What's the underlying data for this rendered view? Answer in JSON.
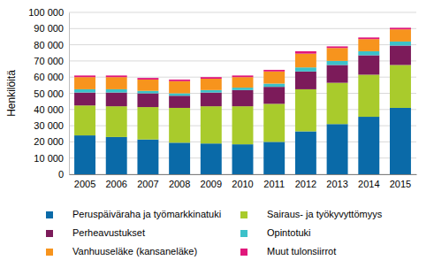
{
  "chart_data": {
    "type": "bar",
    "stacked": true,
    "grid": true,
    "legend": "bottom",
    "y_label": "Henkilöitä",
    "categories": [
      "2005",
      "2006",
      "2007",
      "2008",
      "2009",
      "2010",
      "2011",
      "2012",
      "2013",
      "2014",
      "2015"
    ],
    "ylim": [
      0,
      100000
    ],
    "yticks": [
      0,
      {
        "value": 10000,
        "label": "10 000"
      },
      {
        "value": 20000,
        "label": "20 000"
      },
      {
        "value": 30000,
        "label": "30 000"
      },
      {
        "value": 40000,
        "label": "40 000"
      },
      {
        "value": 50000,
        "label": "50 000"
      },
      {
        "value": 60000,
        "label": "60 000"
      },
      {
        "value": 70000,
        "label": "70 000"
      },
      {
        "value": 80000,
        "label": "80 000"
      },
      {
        "value": 90000,
        "label": "90 000"
      },
      {
        "value": 100000,
        "label": "100 000"
      }
    ],
    "series": [
      {
        "name": "Peruspäiväraha ja työmarkkinatuki",
        "color": "#0a6aa8",
        "values": [
          24000,
          23000,
          21500,
          19500,
          19000,
          18500,
          20000,
          26500,
          31000,
          35500,
          41000
        ]
      },
      {
        "name": "Sairaus- ja työkyvyttömyys",
        "color": "#a9cb2c",
        "values": [
          18500,
          19000,
          20000,
          21500,
          23000,
          23500,
          23500,
          26000,
          25500,
          26000,
          26500
        ]
      },
      {
        "name": "Perheavustukset",
        "color": "#7c1b5a",
        "values": [
          8000,
          8500,
          8500,
          7500,
          8500,
          10000,
          10500,
          11000,
          11000,
          12000,
          12000
        ]
      },
      {
        "name": "Opintotuki",
        "color": "#3cc1c9",
        "values": [
          2000,
          2000,
          1500,
          1500,
          1500,
          1500,
          2000,
          2500,
          2500,
          2500,
          2500
        ]
      },
      {
        "name": "Vanhuuseläke (kansaneläke)",
        "color": "#f7941d",
        "values": [
          7500,
          7500,
          7000,
          7500,
          7000,
          6500,
          7500,
          8500,
          8000,
          7500,
          7500
        ]
      },
      {
        "name": "Muut tulonsiirrot",
        "color": "#e0177b",
        "values": [
          1000,
          1000,
          1000,
          1000,
          1000,
          1000,
          1000,
          1500,
          1000,
          1000,
          1000
        ]
      }
    ]
  }
}
